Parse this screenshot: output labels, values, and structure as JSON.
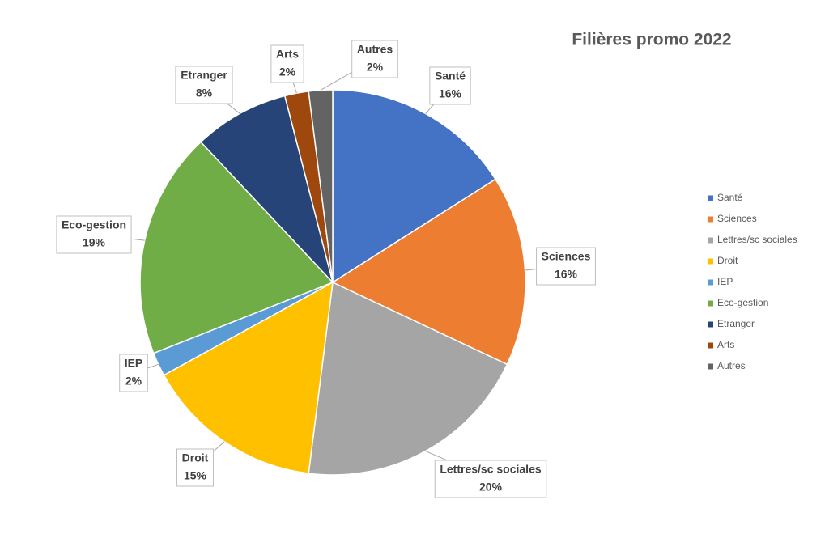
{
  "chart_data": {
    "type": "pie",
    "title": "Filières promo 2022",
    "categories": [
      "Santé",
      "Sciences",
      "Lettres/sc sociales",
      "Droit",
      "IEP",
      "Eco-gestion",
      "Etranger",
      "Arts",
      "Autres"
    ],
    "values": [
      16,
      16,
      20,
      15,
      2,
      19,
      8,
      2,
      2
    ],
    "value_labels": [
      "16%",
      "16%",
      "20%",
      "15%",
      "2%",
      "19%",
      "8%",
      "2%",
      "2%"
    ],
    "colors": [
      "#4472c4",
      "#ed7d31",
      "#a5a5a5",
      "#ffc000",
      "#5b9bd5",
      "#70ad47",
      "#264478",
      "#9e480e",
      "#636363"
    ],
    "legend": "right"
  }
}
